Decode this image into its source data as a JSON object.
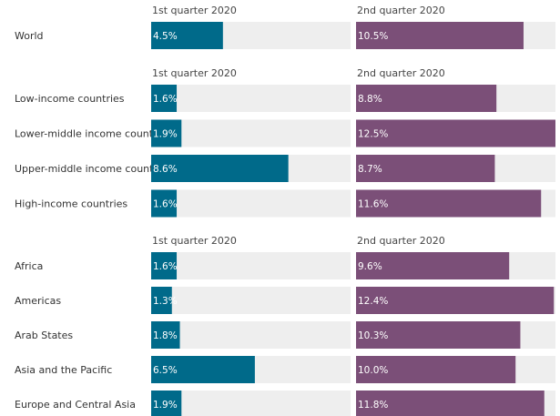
{
  "chart_data": [
    {
      "type": "bar",
      "orientation": "horizontal",
      "categories": [
        "World"
      ],
      "series": [
        {
          "name": "1st quarter 2020",
          "values": [
            4.5
          ],
          "labels": [
            "4.5%"
          ],
          "color": "#006a8a"
        },
        {
          "name": "2nd quarter 2020",
          "values": [
            10.5
          ],
          "labels": [
            "10.5%"
          ],
          "color": "#7b4f78"
        }
      ],
      "xlim": [
        0,
        12.5
      ]
    },
    {
      "type": "bar",
      "orientation": "horizontal",
      "categories": [
        "Low-income countries",
        "Lower-middle income countries",
        "Upper-middle income countries",
        "High-income countries"
      ],
      "series": [
        {
          "name": "1st quarter 2020",
          "values": [
            1.6,
            1.9,
            8.6,
            1.6
          ],
          "labels": [
            "1.6%",
            "1.9%",
            "8.6%",
            "1.6%"
          ],
          "color": "#006a8a"
        },
        {
          "name": "2nd quarter 2020",
          "values": [
            8.8,
            12.5,
            8.7,
            11.6
          ],
          "labels": [
            "8.8%",
            "12.5%",
            "8.7%",
            "11.6%"
          ],
          "color": "#7b4f78"
        }
      ],
      "xlim": [
        0,
        12.5
      ]
    },
    {
      "type": "bar",
      "orientation": "horizontal",
      "categories": [
        "Africa",
        "Americas",
        "Arab States",
        "Asia and the Pacific",
        "Europe and Central Asia"
      ],
      "series": [
        {
          "name": "1st quarter 2020",
          "values": [
            1.6,
            1.3,
            1.8,
            6.5,
            1.9
          ],
          "labels": [
            "1.6%",
            "1.3%",
            "1.8%",
            "6.5%",
            "1.9%"
          ],
          "color": "#006a8a"
        },
        {
          "name": "2nd quarter 2020",
          "values": [
            9.6,
            12.4,
            10.3,
            10.0,
            11.8
          ],
          "labels": [
            "9.6%",
            "12.4%",
            "10.3%",
            "10.0%",
            "11.8%"
          ],
          "color": "#7b4f78"
        }
      ],
      "xlim": [
        0,
        12.5
      ]
    }
  ],
  "track_color": "#eeeeee"
}
